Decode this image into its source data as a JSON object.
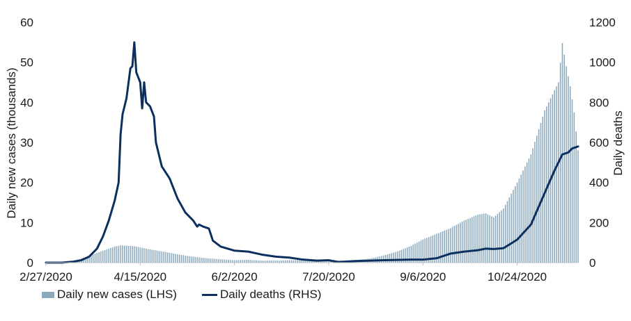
{
  "chart_data": {
    "type": "bar+line",
    "x_start": "2/27/2020",
    "x_end": "11/24/2020",
    "x_ticks": [
      "2/27/2020",
      "4/15/2020",
      "6/2/2020",
      "7/20/2020",
      "9/6/2020",
      "10/24/2020"
    ],
    "left_axis": {
      "label": "Daily new cases (thousands)",
      "min": 0,
      "max": 60,
      "ticks": [
        "0",
        "10",
        "20",
        "30",
        "40",
        "50",
        "60"
      ]
    },
    "right_axis": {
      "label": "Daily deaths",
      "min": 0,
      "max": 1200,
      "ticks": [
        "0",
        "200",
        "400",
        "600",
        "800",
        "1000",
        "1200"
      ]
    },
    "grid": false,
    "legend_position": "bottom-left",
    "series": [
      {
        "name": "Daily new cases (LHS)",
        "type": "bar",
        "axis": "left",
        "color": "#8aa9bd",
        "points": [
          [
            "2/27/2020",
            0
          ],
          [
            "3/5/2020",
            0.1
          ],
          [
            "3/12/2020",
            0.5
          ],
          [
            "3/19/2020",
            1.5
          ],
          [
            "3/26/2020",
            2.8
          ],
          [
            "4/2/2020",
            4.0
          ],
          [
            "4/5/2020",
            4.3
          ],
          [
            "4/12/2020",
            4.1
          ],
          [
            "4/19/2020",
            3.4
          ],
          [
            "4/26/2020",
            2.8
          ],
          [
            "5/3/2020",
            2.2
          ],
          [
            "5/10/2020",
            1.6
          ],
          [
            "5/17/2020",
            1.2
          ],
          [
            "5/24/2020",
            0.9
          ],
          [
            "6/2/2020",
            0.6
          ],
          [
            "6/9/2020",
            0.7
          ],
          [
            "6/16/2020",
            0.5
          ],
          [
            "6/23/2020",
            0.5
          ],
          [
            "6/30/2020",
            0.6
          ],
          [
            "7/7/2020",
            0.6
          ],
          [
            "7/14/2020",
            0.5
          ],
          [
            "7/20/2020",
            0.6
          ],
          [
            "7/27/2020",
            0.5
          ],
          [
            "8/3/2020",
            0.7
          ],
          [
            "8/10/2020",
            1.0
          ],
          [
            "8/17/2020",
            1.8
          ],
          [
            "8/24/2020",
            2.8
          ],
          [
            "8/31/2020",
            4.2
          ],
          [
            "9/6/2020",
            5.8
          ],
          [
            "9/13/2020",
            7.2
          ],
          [
            "9/20/2020",
            8.6
          ],
          [
            "9/27/2020",
            10.5
          ],
          [
            "10/4/2020",
            12.0
          ],
          [
            "10/8/2020",
            12.3
          ],
          [
            "10/12/2020",
            11.3
          ],
          [
            "10/17/2020",
            13.5
          ],
          [
            "10/24/2020",
            20.0
          ],
          [
            "10/31/2020",
            27.0
          ],
          [
            "11/7/2020",
            38.0
          ],
          [
            "11/12/2020",
            43.0
          ],
          [
            "11/14/2020",
            45.0
          ],
          [
            "11/16/2020",
            54.8
          ],
          [
            "11/18/2020",
            49.0
          ],
          [
            "11/20/2020",
            44.0
          ],
          [
            "11/22/2020",
            37.5
          ],
          [
            "11/24/2020",
            28.0
          ]
        ]
      },
      {
        "name": "Daily deaths (RHS)",
        "type": "line",
        "axis": "right",
        "color": "#0b2f5e",
        "points": [
          [
            "2/27/2020",
            0
          ],
          [
            "3/6/2020",
            0
          ],
          [
            "3/12/2020",
            5
          ],
          [
            "3/16/2020",
            12
          ],
          [
            "3/20/2020",
            30
          ],
          [
            "3/24/2020",
            70
          ],
          [
            "3/27/2020",
            130
          ],
          [
            "3/30/2020",
            210
          ],
          [
            "4/2/2020",
            310
          ],
          [
            "4/4/2020",
            400
          ],
          [
            "4/5/2020",
            640
          ],
          [
            "4/6/2020",
            740
          ],
          [
            "4/8/2020",
            820
          ],
          [
            "4/10/2020",
            970
          ],
          [
            "4/11/2020",
            980
          ],
          [
            "4/12/2020",
            1100
          ],
          [
            "4/13/2020",
            950
          ],
          [
            "4/15/2020",
            900
          ],
          [
            "4/16/2020",
            770
          ],
          [
            "4/17/2020",
            900
          ],
          [
            "4/18/2020",
            800
          ],
          [
            "4/20/2020",
            780
          ],
          [
            "4/22/2020",
            730
          ],
          [
            "4/23/2020",
            600
          ],
          [
            "4/26/2020",
            480
          ],
          [
            "4/30/2020",
            420
          ],
          [
            "5/4/2020",
            320
          ],
          [
            "5/8/2020",
            250
          ],
          [
            "5/12/2020",
            210
          ],
          [
            "5/14/2020",
            180
          ],
          [
            "5/15/2020",
            190
          ],
          [
            "5/17/2020",
            180
          ],
          [
            "5/20/2020",
            170
          ],
          [
            "5/22/2020",
            110
          ],
          [
            "5/26/2020",
            80
          ],
          [
            "6/2/2020",
            60
          ],
          [
            "6/9/2020",
            55
          ],
          [
            "6/16/2020",
            40
          ],
          [
            "6/23/2020",
            30
          ],
          [
            "6/30/2020",
            25
          ],
          [
            "7/7/2020",
            15
          ],
          [
            "7/14/2020",
            10
          ],
          [
            "7/20/2020",
            12
          ],
          [
            "7/25/2020",
            3
          ],
          [
            "8/3/2020",
            8
          ],
          [
            "8/17/2020",
            12
          ],
          [
            "8/31/2020",
            15
          ],
          [
            "9/6/2020",
            15
          ],
          [
            "9/13/2020",
            22
          ],
          [
            "9/20/2020",
            45
          ],
          [
            "9/27/2020",
            55
          ],
          [
            "10/4/2020",
            62
          ],
          [
            "10/8/2020",
            70
          ],
          [
            "10/12/2020",
            68
          ],
          [
            "10/17/2020",
            72
          ],
          [
            "10/24/2020",
            115
          ],
          [
            "10/31/2020",
            190
          ],
          [
            "11/4/2020",
            280
          ],
          [
            "11/8/2020",
            370
          ],
          [
            "11/12/2020",
            460
          ],
          [
            "11/16/2020",
            540
          ],
          [
            "11/19/2020",
            550
          ],
          [
            "11/21/2020",
            570
          ],
          [
            "11/24/2020",
            580
          ]
        ]
      }
    ]
  }
}
